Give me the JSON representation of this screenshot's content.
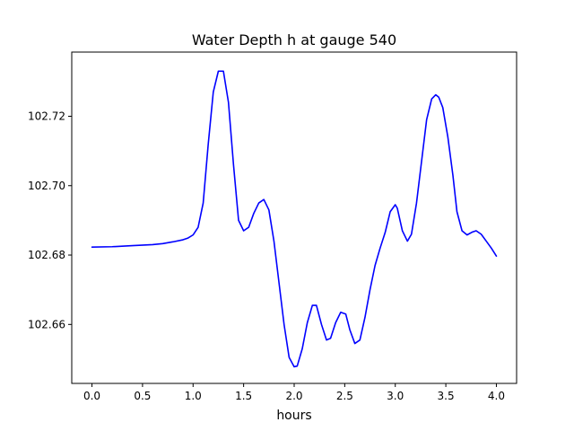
{
  "chart_data": {
    "type": "line",
    "title": "Water Depth h at gauge 540",
    "xlabel": "hours",
    "ylabel": "",
    "xlim": [
      -0.2,
      4.2
    ],
    "ylim": [
      102.643,
      102.7385
    ],
    "xticks": [
      0.0,
      0.5,
      1.0,
      1.5,
      2.0,
      2.5,
      3.0,
      3.5,
      4.0
    ],
    "xtick_labels": [
      "0.0",
      "0.5",
      "1.0",
      "1.5",
      "2.0",
      "2.5",
      "3.0",
      "3.5",
      "4.0"
    ],
    "yticks": [
      102.66,
      102.68,
      102.7,
      102.72
    ],
    "ytick_labels": [
      "102.66",
      "102.68",
      "102.70",
      "102.72"
    ],
    "grid": false,
    "series": [
      {
        "color": "#0000ff",
        "x": [
          0.0,
          0.2,
          0.4,
          0.6,
          0.7,
          0.8,
          0.9,
          0.95,
          1.0,
          1.05,
          1.1,
          1.15,
          1.2,
          1.25,
          1.3,
          1.35,
          1.4,
          1.45,
          1.5,
          1.55,
          1.6,
          1.65,
          1.7,
          1.75,
          1.8,
          1.85,
          1.9,
          1.95,
          2.0,
          2.03,
          2.08,
          2.13,
          2.18,
          2.22,
          2.27,
          2.32,
          2.36,
          2.41,
          2.46,
          2.51,
          2.55,
          2.6,
          2.65,
          2.7,
          2.75,
          2.8,
          2.85,
          2.9,
          2.95,
          3.0,
          3.02,
          3.07,
          3.12,
          3.16,
          3.21,
          3.26,
          3.31,
          3.36,
          3.4,
          3.43,
          3.47,
          3.52,
          3.57,
          3.61,
          3.66,
          3.71,
          3.76,
          3.8,
          3.85,
          3.9,
          3.95,
          4.0
        ],
        "y": [
          102.6823,
          102.6824,
          102.6827,
          102.683,
          102.6833,
          102.6838,
          102.6844,
          102.6849,
          102.6858,
          102.688,
          102.695,
          102.712,
          102.727,
          102.733,
          102.733,
          102.724,
          102.706,
          102.69,
          102.687,
          102.688,
          102.692,
          102.695,
          102.696,
          102.693,
          102.684,
          102.672,
          102.66,
          102.6505,
          102.6478,
          102.648,
          102.653,
          102.6605,
          102.6655,
          102.6655,
          102.66,
          102.6555,
          102.656,
          102.6605,
          102.6635,
          102.663,
          102.6585,
          102.6545,
          102.6555,
          102.662,
          102.67,
          102.677,
          102.682,
          102.6865,
          102.6925,
          102.6945,
          102.6935,
          102.687,
          102.684,
          102.686,
          102.695,
          102.707,
          102.719,
          102.725,
          102.7262,
          102.7255,
          102.7225,
          102.714,
          102.703,
          102.6925,
          102.687,
          102.6858,
          102.6866,
          102.687,
          102.686,
          102.684,
          102.682,
          102.6797
        ]
      }
    ]
  }
}
